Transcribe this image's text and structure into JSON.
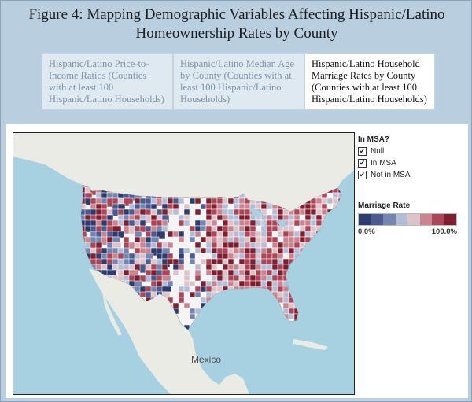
{
  "title": "Figure 4: Mapping Demographic Variables Affecting Hispanic/Latino Homeownership Rates by County",
  "tabs": [
    {
      "label": "Hispanic/Latino Price-to-Income Ratios (Counties with at least 100 Hispanic/Latino Households)",
      "active": false
    },
    {
      "label": "Hispanic/Latino Median Age by County (Counties with at least 100 Hispanic/Latino Households)",
      "active": false
    },
    {
      "label": "Hispanic/Latino Household Marriage Rates by County (Counties with at least 100 Hispanic/Latino Households)",
      "active": true
    }
  ],
  "filter": {
    "title": "In MSA?",
    "items": [
      {
        "label": "Null",
        "checked": true
      },
      {
        "label": "In MSA",
        "checked": true
      },
      {
        "label": "Not in MSA",
        "checked": true
      }
    ]
  },
  "color_legend": {
    "title": "Marriage Rate",
    "min_label": "0.0%",
    "max_label": "100.0%",
    "colors": [
      "#2e3b6e",
      "#4b5a8f",
      "#7585b0",
      "#b4bdd6",
      "#dcc4ca",
      "#c98590",
      "#aa4658",
      "#7d1f2f"
    ]
  },
  "map": {
    "basemap_label": "Mexico",
    "land_color": "#e9ebe4",
    "water_color": "#a7d0e0"
  }
}
